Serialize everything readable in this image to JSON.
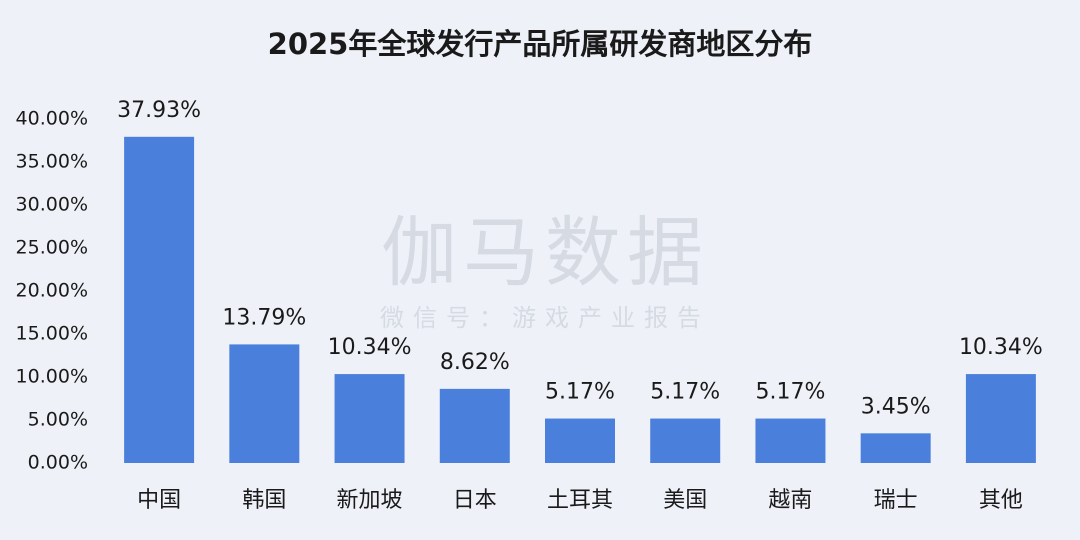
{
  "chart_data": {
    "type": "bar",
    "title": "2025年全球发行产品所属研发商地区分布",
    "watermark": "伽马数据",
    "watermark_subtitle": "微信号：游戏产业报告",
    "categories": [
      "中国",
      "韩国",
      "新加坡",
      "日本",
      "土耳其",
      "美国",
      "越南",
      "瑞士",
      "其他"
    ],
    "values": [
      37.93,
      13.79,
      10.34,
      8.62,
      5.17,
      5.17,
      5.17,
      3.45,
      10.34
    ],
    "value_labels": [
      "37.93%",
      "13.79%",
      "10.34%",
      "8.62%",
      "5.17%",
      "5.17%",
      "5.17%",
      "3.45%",
      "10.34%"
    ],
    "color": "#4a80dc",
    "ylim": [
      0,
      40
    ],
    "yticks": [
      {
        "value": 0,
        "label": "0.00%"
      },
      {
        "value": 5,
        "label": "5.00%"
      },
      {
        "value": 10,
        "label": "10.00%"
      },
      {
        "value": 15,
        "label": "15.00%"
      },
      {
        "value": 20,
        "label": "20.00%"
      },
      {
        "value": 25,
        "label": "25.00%"
      },
      {
        "value": 30,
        "label": "30.00%"
      },
      {
        "value": 35,
        "label": "35.00%"
      },
      {
        "value": 40,
        "label": "40.00%"
      }
    ],
    "grid": false
  }
}
